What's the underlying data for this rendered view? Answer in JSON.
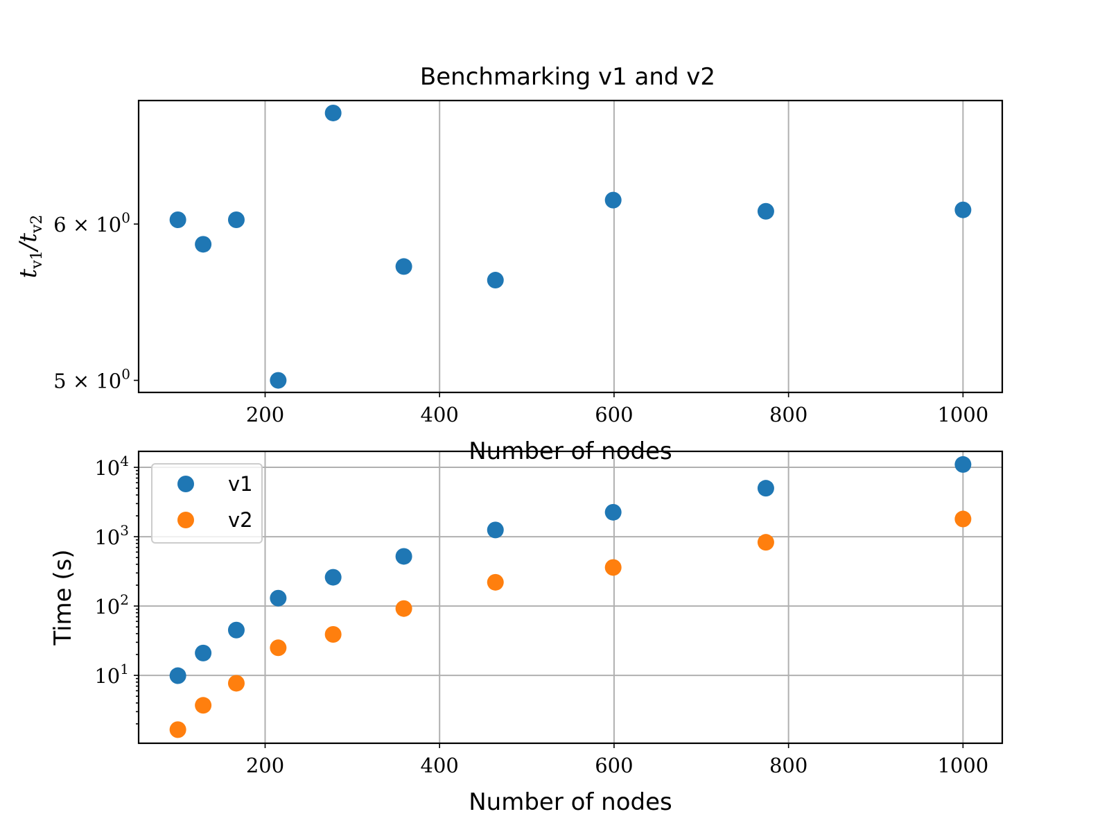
{
  "figure": {
    "title": "Benchmarking v1 and v2"
  },
  "chart_data": [
    {
      "type": "scatter",
      "title": "Benchmarking v1 and v2",
      "xlabel": "Number of nodes",
      "ylabel_parts": {
        "t": "t",
        "sub1": "v1",
        "slash": "/",
        "sub2": "v2"
      },
      "y_scale": "log",
      "xlim": [
        55,
        1045
      ],
      "ylim": [
        4.93,
        6.93
      ],
      "grid": "x",
      "legend": "none",
      "x_ticks": [
        {
          "value": 200,
          "label": "200"
        },
        {
          "value": 400,
          "label": "400"
        },
        {
          "value": 600,
          "label": "600"
        },
        {
          "value": 800,
          "label": "800"
        },
        {
          "value": 1000,
          "label": "1000"
        }
      ],
      "y_ticks": [
        {
          "value": 5,
          "mantissa": "5",
          "times": "×",
          "base": "10",
          "exponent": "0"
        },
        {
          "value": 6,
          "mantissa": "6",
          "times": "×",
          "base": "10",
          "exponent": "0"
        }
      ],
      "color": "#1f77b4",
      "series": [
        {
          "x": [
            100,
            129,
            167,
            215,
            278,
            359,
            464,
            599,
            774,
            1000
          ],
          "y": [
            6.03,
            5.86,
            6.03,
            5.0,
            6.83,
            5.71,
            5.62,
            6.17,
            6.09,
            6.1
          ]
        }
      ]
    },
    {
      "type": "scatter",
      "xlabel": "Number of nodes",
      "ylabel": "Time (s)",
      "y_scale": "log",
      "xlim": [
        55,
        1045
      ],
      "ylim": [
        1.05,
        17000
      ],
      "grid": "both",
      "legend": "upper-left",
      "x_ticks": [
        {
          "value": 200,
          "label": "200"
        },
        {
          "value": 400,
          "label": "400"
        },
        {
          "value": 600,
          "label": "600"
        },
        {
          "value": 800,
          "label": "800"
        },
        {
          "value": 1000,
          "label": "1000"
        }
      ],
      "y_ticks": [
        {
          "value": 10,
          "base": "10",
          "exponent": "1"
        },
        {
          "value": 100,
          "base": "10",
          "exponent": "2"
        },
        {
          "value": 1000,
          "base": "10",
          "exponent": "3"
        },
        {
          "value": 10000,
          "base": "10",
          "exponent": "4"
        }
      ],
      "series": [
        {
          "name": "v1",
          "color": "#1f77b4",
          "x": [
            100,
            129,
            167,
            215,
            278,
            359,
            464,
            599,
            774,
            1000
          ],
          "y": [
            9.9,
            21,
            45,
            130,
            260,
            520,
            1250,
            2250,
            5000,
            11000
          ]
        },
        {
          "name": "v2",
          "color": "#ff7f0e",
          "x": [
            100,
            129,
            167,
            215,
            278,
            359,
            464,
            599,
            774,
            1000
          ],
          "y": [
            1.65,
            3.7,
            7.7,
            25,
            39,
            92,
            220,
            360,
            830,
            1800
          ]
        }
      ]
    }
  ]
}
